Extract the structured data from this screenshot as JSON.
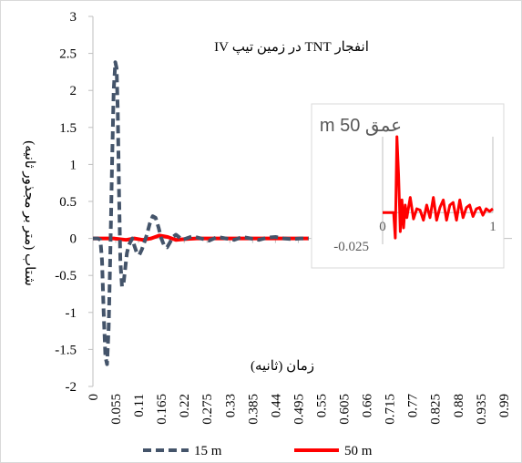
{
  "chart_data": [
    {
      "type": "line",
      "title": "انفجار TNT در زمین تیپ IV",
      "xlabel": "زمان (ثانیه)",
      "ylabel": "شتاب (متر بر مجذور ثانیه)",
      "ylim": [
        -2,
        3
      ],
      "yticks": [
        "3",
        "2.5",
        "2",
        "1.5",
        "1",
        "0.5",
        "0",
        "-0.5",
        "-1",
        "-1.5",
        "-2"
      ],
      "xticks": [
        "0",
        "0.055",
        "0.11",
        "0.165",
        "0.22",
        "0.275",
        "0.33",
        "0.385",
        "0.44",
        "0.495",
        "0.55",
        "0.605",
        "0.66",
        "0.715",
        "0.77",
        "0.825",
        "0.88",
        "0.935",
        "0.99"
      ],
      "xlim": [
        0,
        1.01
      ],
      "grid": false,
      "legend_position": "bottom",
      "series": [
        {
          "name": "15 m",
          "color": "#44546a",
          "style": "dashed",
          "x": [
            0,
            0.005,
            0.012,
            0.018,
            0.022,
            0.026,
            0.03,
            0.034,
            0.038,
            0.042,
            0.046,
            0.05,
            0.054,
            0.057,
            0.06,
            0.063,
            0.066,
            0.07,
            0.074,
            0.078,
            0.082,
            0.086,
            0.09,
            0.095,
            0.1,
            0.106,
            0.112,
            0.118,
            0.124,
            0.13,
            0.137,
            0.144,
            0.151,
            0.158,
            0.165,
            0.172,
            0.179,
            0.186,
            0.193,
            0.2,
            0.207,
            0.215,
            0.225,
            0.24,
            0.26,
            0.28,
            0.3,
            0.32,
            0.34,
            0.36,
            0.38,
            0.4,
            0.42,
            0.44,
            0.46,
            0.48,
            0.5,
            0.52
          ],
          "values": [
            0,
            0,
            0,
            -0.02,
            -0.3,
            -1.0,
            -1.6,
            -1.7,
            -1.2,
            -0.2,
            1.0,
            2.0,
            2.38,
            2.3,
            1.7,
            0.6,
            -0.3,
            -0.65,
            -0.6,
            -0.4,
            -0.2,
            -0.1,
            -0.05,
            0.0,
            -0.1,
            -0.2,
            -0.22,
            -0.15,
            -0.05,
            0.05,
            0.2,
            0.3,
            0.28,
            0.15,
            0.0,
            -0.1,
            -0.12,
            -0.05,
            0.02,
            0.05,
            0.02,
            -0.02,
            0.0,
            0.03,
            0.0,
            -0.03,
            0.02,
            0.0,
            -0.02,
            0.02,
            0.0,
            -0.02,
            0.01,
            0.02,
            0.0,
            -0.01,
            0.0,
            0.0
          ]
        },
        {
          "name": "50 m",
          "color": "#ff0000",
          "style": "solid",
          "x": [
            0,
            0.05,
            0.08,
            0.1,
            0.12,
            0.14,
            0.16,
            0.18,
            0.2,
            0.22,
            0.25,
            0.3,
            0.35,
            0.4,
            0.45,
            0.5,
            0.52
          ],
          "values": [
            0,
            0.0,
            -0.02,
            0.0,
            -0.02,
            0.0,
            0.04,
            0.02,
            -0.02,
            -0.01,
            0.0,
            0.0,
            0.0,
            0.0,
            0.0,
            0.0,
            0.0
          ]
        }
      ]
    },
    {
      "type": "line",
      "title": "عمق 50 m",
      "xticks": [
        "0",
        "1"
      ],
      "yticks": [
        "-0.025"
      ],
      "xlim": [
        0,
        1
      ],
      "ylim": [
        -0.025,
        0.06
      ],
      "series": [
        {
          "name": "",
          "color": "#ff0000",
          "x": [
            0,
            0.08,
            0.1,
            0.115,
            0.13,
            0.145,
            0.16,
            0.175,
            0.19,
            0.205,
            0.22,
            0.25,
            0.28,
            0.31,
            0.34,
            0.37,
            0.4,
            0.43,
            0.46,
            0.49,
            0.52,
            0.55,
            0.58,
            0.61,
            0.64,
            0.67,
            0.7,
            0.73,
            0.76,
            0.79,
            0.82,
            0.85,
            0.88,
            0.91,
            0.94,
            0.97,
            1.0
          ],
          "values": [
            0.0,
            0.0,
            0.0,
            -0.02,
            0.06,
            0.03,
            -0.015,
            0.01,
            -0.012,
            0.006,
            -0.004,
            0.012,
            -0.005,
            0.003,
            0.002,
            -0.006,
            0.006,
            -0.004,
            0.012,
            -0.006,
            0.004,
            0.01,
            -0.006,
            0.006,
            0.008,
            -0.006,
            0.01,
            -0.004,
            0.004,
            0.006,
            -0.003,
            0.003,
            0.004,
            -0.002,
            0.003,
            0.001,
            0.003
          ]
        }
      ]
    }
  ]
}
